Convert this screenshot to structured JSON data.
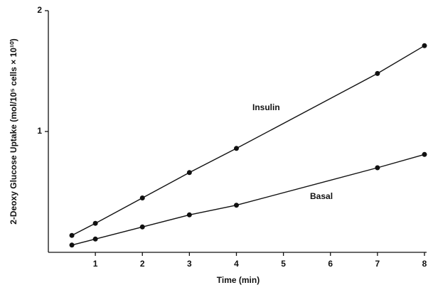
{
  "chart_data": {
    "type": "line",
    "x_label": "Time (min)",
    "y_label": "2-Deoxy Glucose Uptake (mol/10⁵ cells × 10¹⁰)",
    "x": [
      0.5,
      1,
      2,
      3,
      4,
      7,
      8
    ],
    "series": [
      {
        "name": "Insulin",
        "color": "#111111",
        "values": [
          0.14,
          0.24,
          0.45,
          0.66,
          0.86,
          1.48,
          1.71
        ]
      },
      {
        "name": "Basal",
        "color": "#111111",
        "values": [
          0.06,
          0.11,
          0.21,
          0.31,
          0.39,
          0.7,
          0.81
        ]
      }
    ],
    "xlim": [
      0,
      8
    ],
    "xticks": [
      1,
      2,
      3,
      4,
      5,
      6,
      7,
      8
    ],
    "ylim": [
      0,
      2
    ],
    "yticks": [
      1,
      2
    ],
    "grid": false
  }
}
